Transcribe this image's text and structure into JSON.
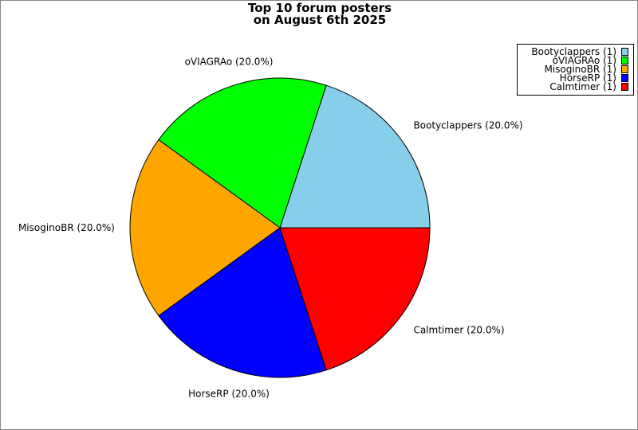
{
  "chart_data": {
    "type": "pie",
    "title": [
      "Top 10 forum posters",
      "on August 6th 2025"
    ],
    "slices": [
      {
        "name": "Bootyclappers",
        "value": 1,
        "percent_label": "Bootyclappers (20.0%)",
        "legend_label": "Bootyclappers (1)",
        "color": "#87CEEB"
      },
      {
        "name": "oVIAGRAo",
        "value": 1,
        "percent_label": "oVIAGRAo (20.0%)",
        "legend_label": "oVIAGRAo (1)",
        "color": "#00FF00"
      },
      {
        "name": "MisoginoBR",
        "value": 1,
        "percent_label": "MisoginoBR (20.0%)",
        "legend_label": "MisoginoBR (1)",
        "color": "#FFA500"
      },
      {
        "name": "HorseRP",
        "value": 1,
        "percent_label": "HorseRP (20.0%)",
        "legend_label": "HorseRP (1)",
        "color": "#0000FF"
      },
      {
        "name": "Calmtimer",
        "value": 1,
        "percent_label": "Calmtimer (20.0%)",
        "legend_label": "Calmtimer (1)",
        "color": "#FF0000"
      }
    ],
    "legend_position": "top-right"
  }
}
